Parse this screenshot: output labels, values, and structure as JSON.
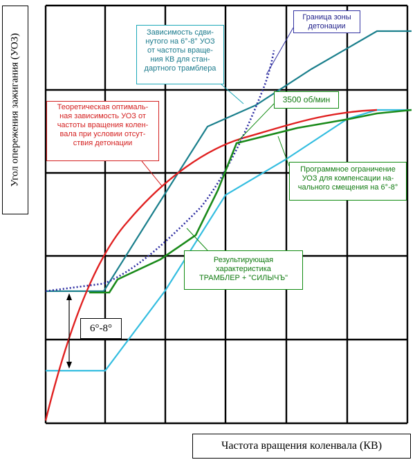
{
  "axes": {
    "y_label": "Угол опережения зажигания (УОЗ)",
    "x_label": "Частота вращения коленвала (КВ)"
  },
  "callouts": {
    "theoretical": [
      "Теоретическая оптималь-",
      "ная зависимость УОЗ от",
      "частоты вращения колен-",
      "вала при условии отсут-",
      "ствия детонации"
    ],
    "shifted": [
      "Зависимость сдви-",
      "нутого на 6°-8° УОЗ",
      "от частоты враще-",
      "ния КВ для стан-",
      "дартного трамблера"
    ],
    "knock_boundary": [
      "Граница зоны",
      "детонации"
    ],
    "rpm_3500": "3500 об/мин",
    "program_limit": [
      "Программное ограничение",
      "УОЗ для компенсации на-",
      "чального смещения на 6°-8°"
    ],
    "resulting": [
      "Результирующая",
      "характеристика",
      "ТРАМБЛЕР + \"СИЛЫЧЪ\""
    ],
    "offset": "6°-8°"
  },
  "colors": {
    "grid": "#000000",
    "theoretical": "#e02020",
    "shifted": "#1a7f8c",
    "knock_boundary": "#2a2aa0",
    "resulting": "#1a8a1a",
    "standard": "#33bde0"
  }
}
